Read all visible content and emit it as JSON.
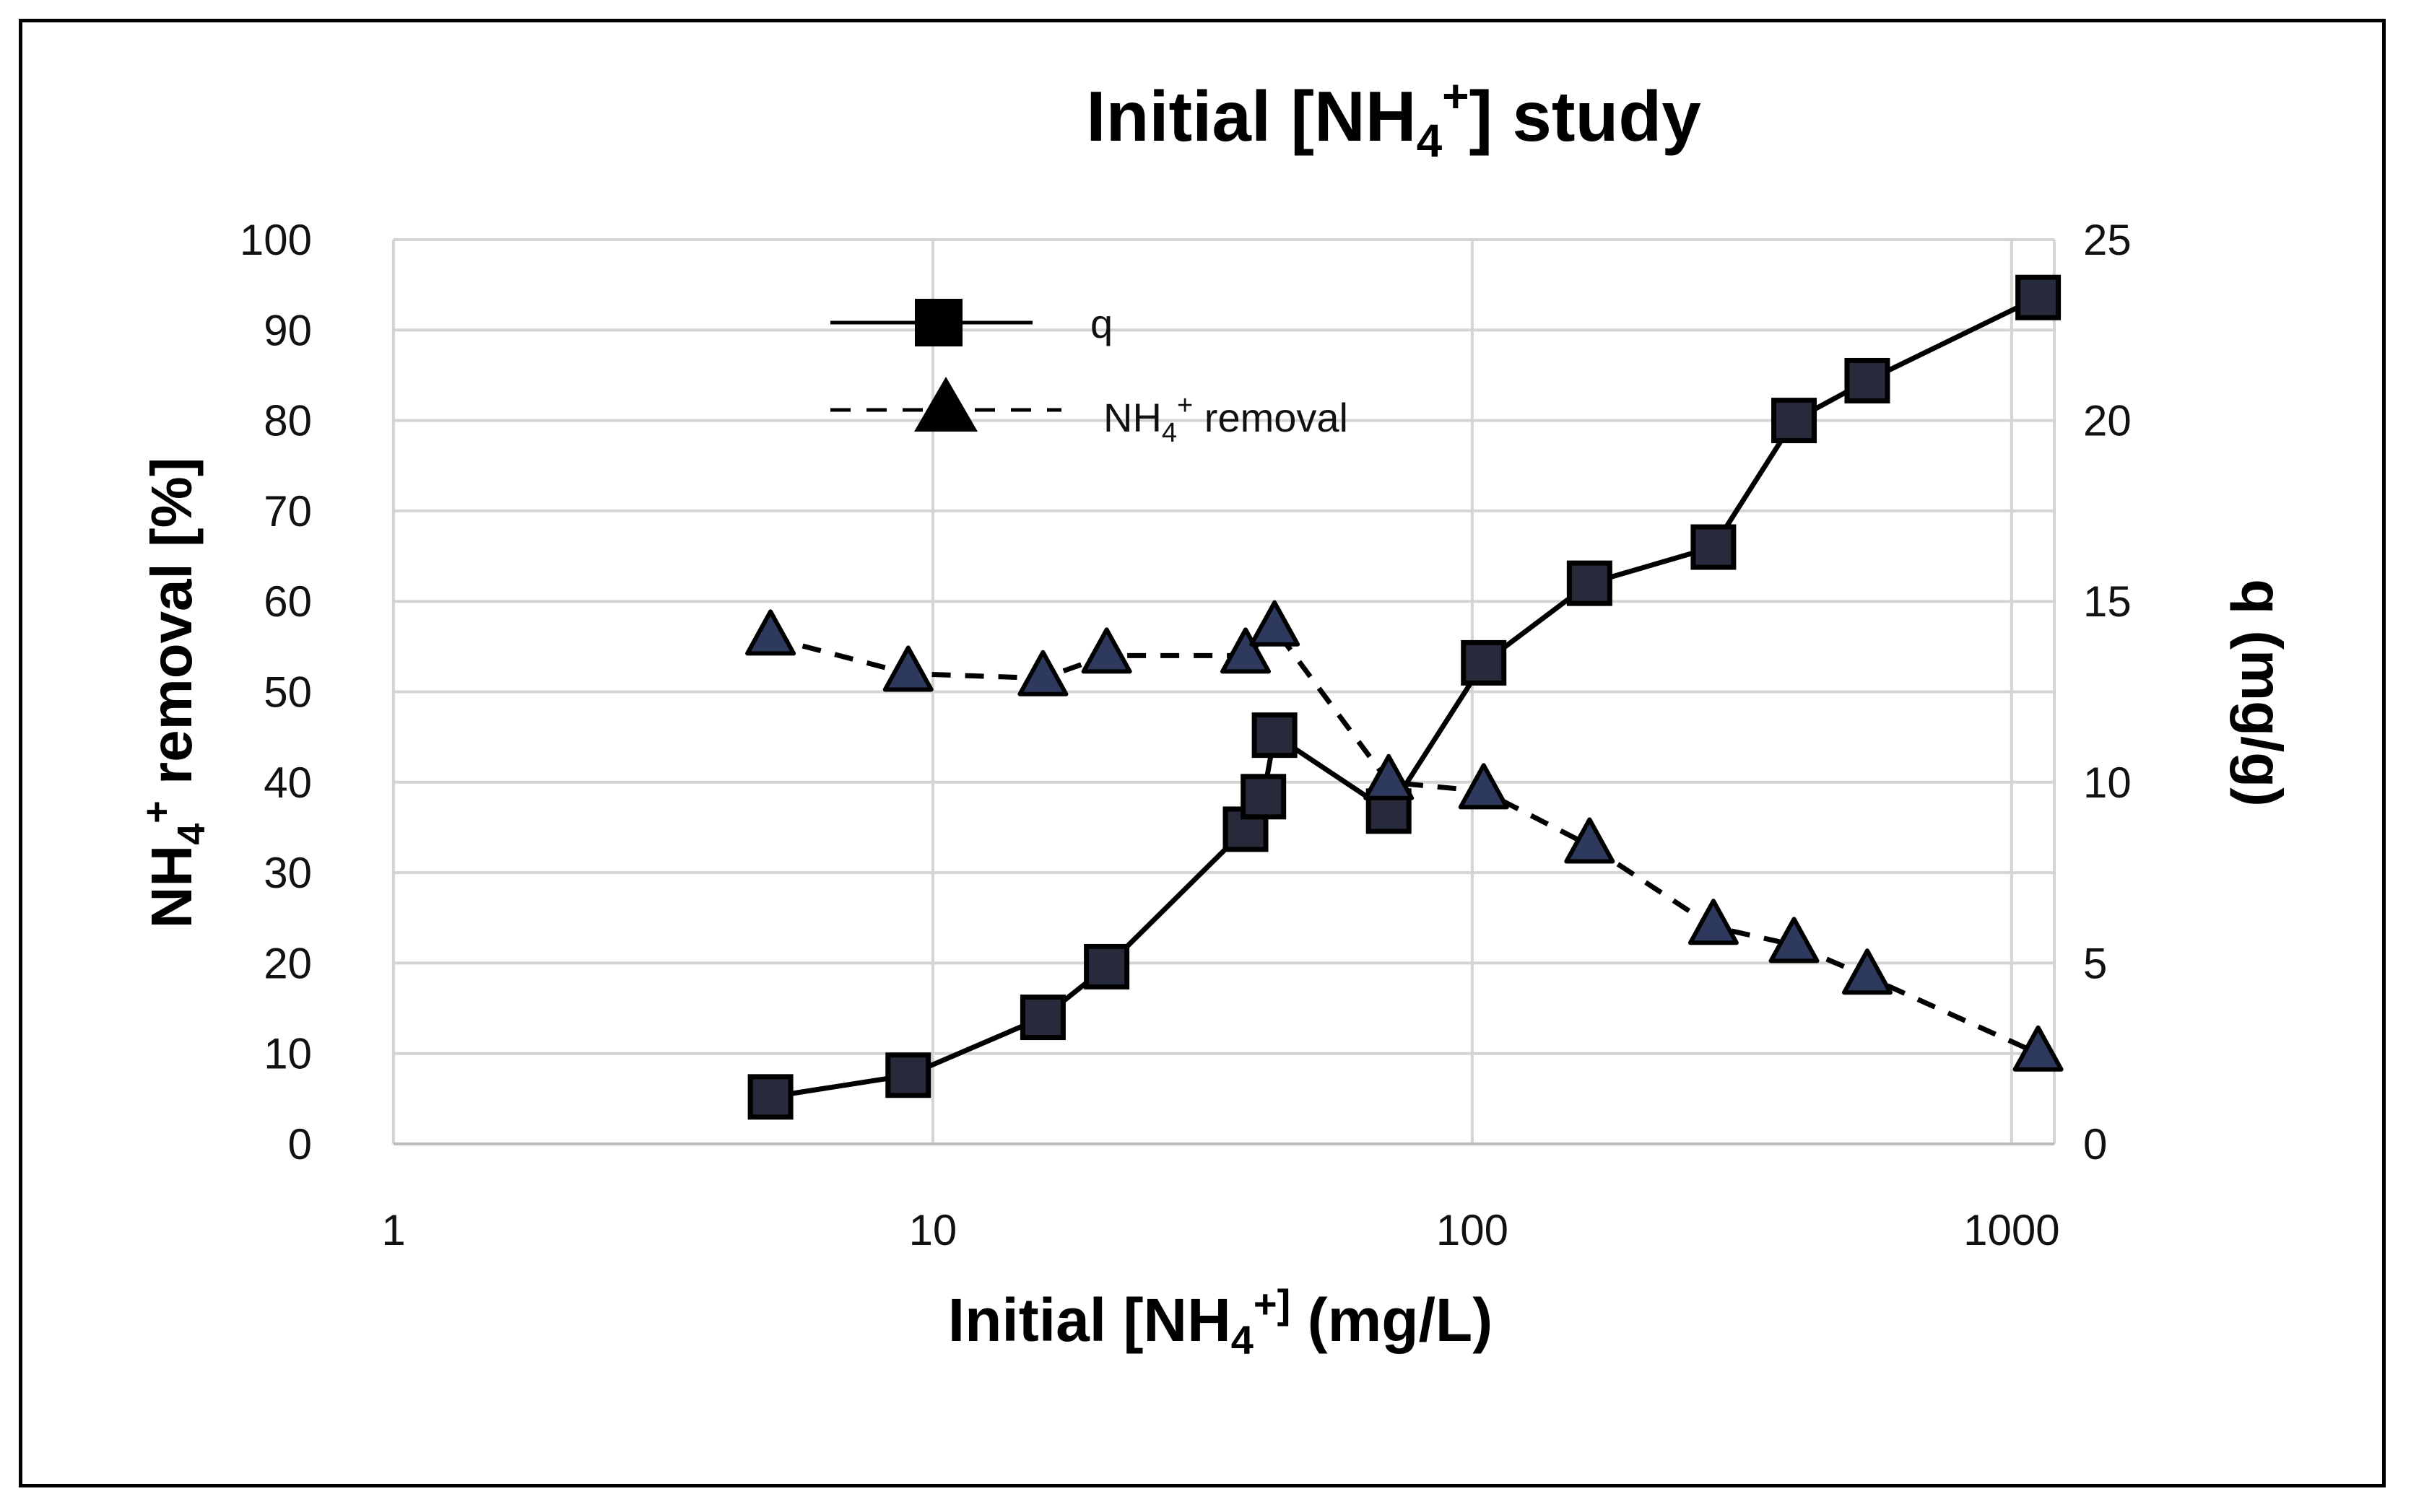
{
  "chart_data": {
    "type": "line",
    "title": {
      "base": "Initial [NH",
      "sub": "4",
      "sup": "+",
      "tail": "] study"
    },
    "xlabel": {
      "base": "Initial [NH",
      "sub": "4",
      "sup": "+]",
      "tail": " (mg/L)"
    },
    "ylabel_left": {
      "base": "NH",
      "sub": "4",
      "sup": "+",
      "tail": " removal [%]"
    },
    "ylabel_right": "q (mg/g)",
    "x_scale": "log",
    "xlim": [
      1,
      1200
    ],
    "x_ticks": [
      1,
      10,
      100,
      1000
    ],
    "x_tick_labels": [
      "1",
      "10",
      "100",
      "1000"
    ],
    "ylim_left": [
      0,
      100
    ],
    "y_ticks_left": [
      0,
      10,
      20,
      30,
      40,
      50,
      60,
      70,
      80,
      90,
      100
    ],
    "y_tick_labels_left": [
      "0",
      "10",
      "20",
      "30",
      "40",
      "50",
      "60",
      "70",
      "80",
      "90",
      "100"
    ],
    "ylim_right": [
      0,
      25
    ],
    "y_ticks_right": [
      0,
      5,
      10,
      15,
      20,
      25
    ],
    "y_tick_labels_right": [
      "0",
      "5",
      "10",
      "15",
      "20",
      "25"
    ],
    "grid": true,
    "legend_position": "top-center",
    "series": [
      {
        "name": "q",
        "axis": "right",
        "marker": "square",
        "line": "solid",
        "x": [
          5,
          9,
          16,
          21,
          38,
          41,
          43,
          70,
          105,
          165,
          280,
          395,
          540,
          1120
        ],
        "y": [
          1.3,
          1.9,
          3.5,
          4.9,
          8.7,
          9.6,
          11.3,
          9.2,
          13.3,
          15.5,
          16.5,
          20.0,
          21.1,
          23.4
        ]
      },
      {
        "name": "NH4+ removal",
        "legend": {
          "base": "NH",
          "sub": "4",
          "sup": "+",
          "tail": " removal"
        },
        "axis": "left",
        "marker": "triangle",
        "line": "dashed",
        "x": [
          5,
          9,
          16,
          21,
          38,
          43,
          70,
          105,
          165,
          280,
          395,
          540,
          1120
        ],
        "y": [
          56,
          52,
          51.5,
          54,
          54,
          57,
          40,
          39,
          33,
          24,
          22,
          18.5,
          10
        ]
      }
    ]
  }
}
